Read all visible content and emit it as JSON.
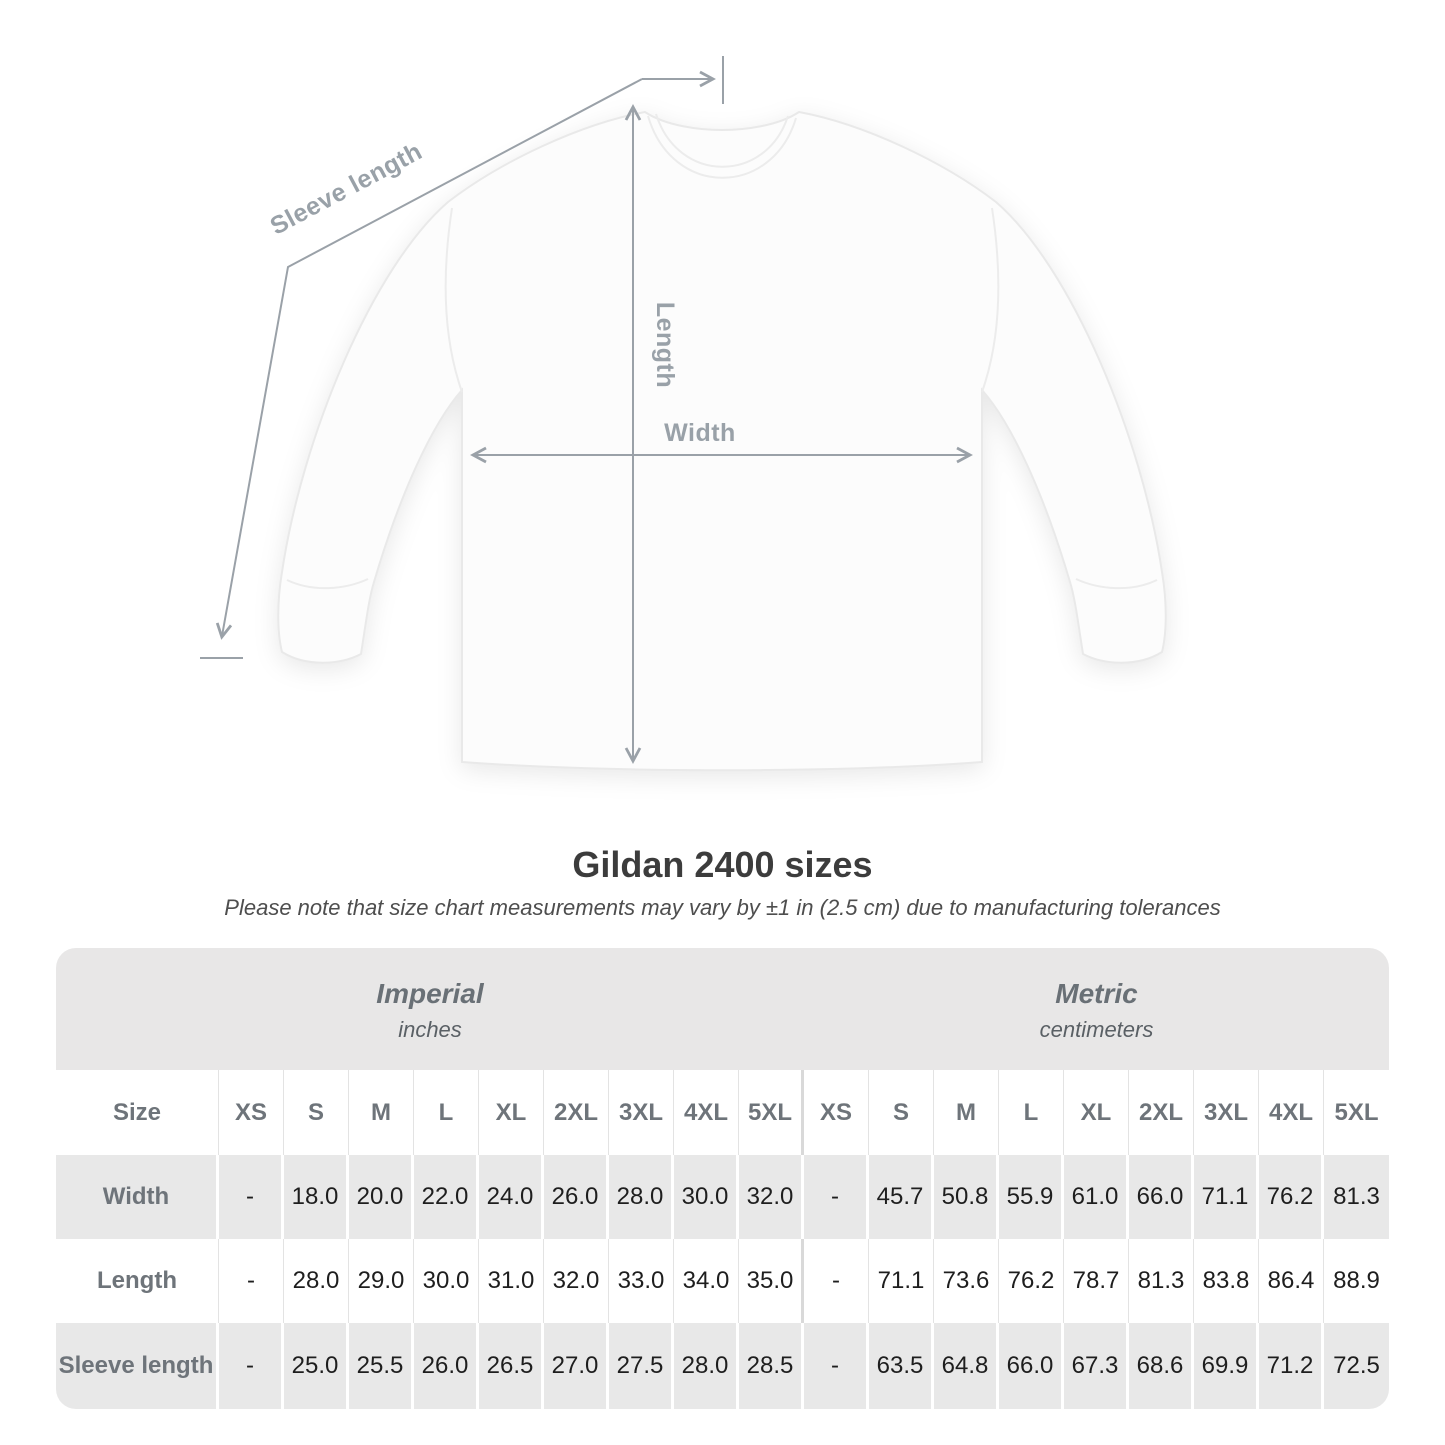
{
  "diagram": {
    "sleeve_length_label": "Sleeve length",
    "length_label": "Length",
    "width_label": "Width"
  },
  "heading": {
    "title": "Gildan 2400 sizes",
    "subtitle": "Please note that size chart measurements may vary by ±1 in (2.5 cm) due to manufacturing tolerances"
  },
  "table": {
    "unit_groups": [
      {
        "label": "Imperial",
        "sublabel": "inches"
      },
      {
        "label": "Metric",
        "sublabel": "centimeters"
      }
    ],
    "size_header": "Size",
    "sizes": [
      "XS",
      "S",
      "M",
      "L",
      "XL",
      "2XL",
      "3XL",
      "4XL",
      "5XL"
    ],
    "rows": [
      {
        "label": "Width",
        "imperial": [
          "-",
          "18.0",
          "20.0",
          "22.0",
          "24.0",
          "26.0",
          "28.0",
          "30.0",
          "32.0"
        ],
        "metric": [
          "-",
          "45.7",
          "50.8",
          "55.9",
          "61.0",
          "66.0",
          "71.1",
          "76.2",
          "81.3"
        ]
      },
      {
        "label": "Length",
        "imperial": [
          "-",
          "28.0",
          "29.0",
          "30.0",
          "31.0",
          "32.0",
          "33.0",
          "34.0",
          "35.0"
        ],
        "metric": [
          "-",
          "71.1",
          "73.6",
          "76.2",
          "78.7",
          "81.3",
          "83.8",
          "86.4",
          "88.9"
        ]
      },
      {
        "label": "Sleeve length",
        "imperial": [
          "-",
          "25.0",
          "25.5",
          "26.0",
          "26.5",
          "27.0",
          "27.5",
          "28.0",
          "28.5"
        ],
        "metric": [
          "-",
          "63.5",
          "64.8",
          "66.0",
          "67.3",
          "68.6",
          "69.9",
          "71.2",
          "72.5"
        ]
      }
    ]
  },
  "colors": {
    "unit_band": "#e8e7e7",
    "row_gray": "#e8e8e8",
    "label_gray": "#6e747a",
    "value_text": "#1e1e1e",
    "annotation_gray": "#9aa1a8",
    "title_text": "#3c3c3c"
  }
}
